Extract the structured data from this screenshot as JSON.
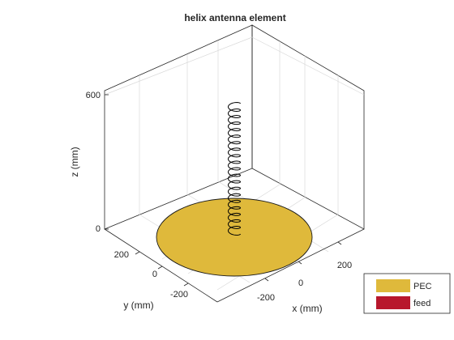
{
  "chart_data": {
    "type": "3d-surface",
    "title": "helix antenna element",
    "xlabel": "x (mm)",
    "ylabel": "y (mm)",
    "zlabel": "z (mm)",
    "x_ticks": [
      "-200",
      "0",
      "200"
    ],
    "y_ticks": [
      "-200",
      "0",
      "200"
    ],
    "z_ticks": [
      "0",
      "600"
    ],
    "xlim": [
      -300,
      300
    ],
    "ylim": [
      -300,
      300
    ],
    "zlim": [
      0,
      700
    ],
    "grid": true,
    "legend_position": "bottom-right",
    "ground_plane": {
      "shape": "disc",
      "radius": 300,
      "z": 0
    },
    "helix": {
      "turns": 20,
      "radius": 20,
      "height": 560
    },
    "legend": [
      {
        "label": "PEC",
        "color": "#dfb93b"
      },
      {
        "label": "feed",
        "color": "#b8172c"
      }
    ]
  }
}
